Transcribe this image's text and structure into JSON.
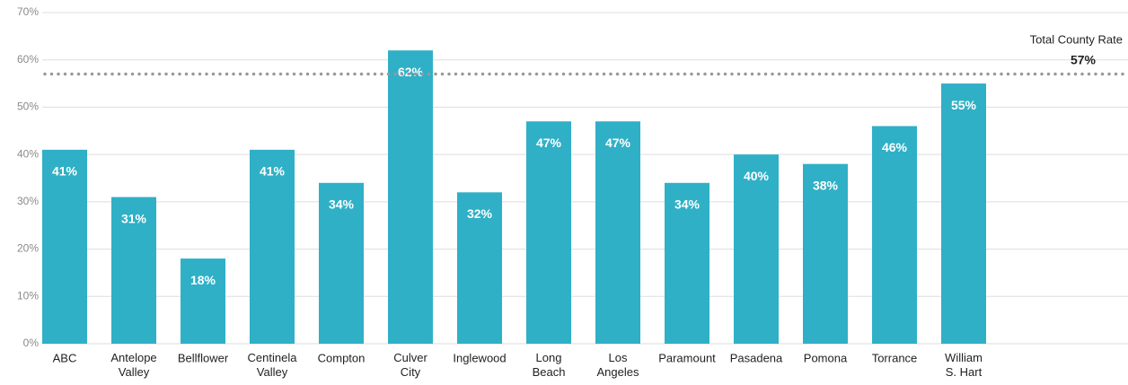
{
  "chart_data": {
    "type": "bar",
    "categories": [
      "ABC",
      "Antelope\nValley",
      "Bellflower",
      "Centinela\nValley",
      "Compton",
      "Culver\nCity",
      "Inglewood",
      "Long\nBeach",
      "Los\nAngeles",
      "Paramount",
      "Pasadena",
      "Pomona",
      "Torrance",
      "William\nS. Hart"
    ],
    "values": [
      41,
      31,
      18,
      41,
      34,
      62,
      32,
      47,
      47,
      34,
      40,
      38,
      46,
      55
    ],
    "value_labels": [
      "41%",
      "31%",
      "18%",
      "41%",
      "34%",
      "62%",
      "32%",
      "47%",
      "47%",
      "34%",
      "40%",
      "38%",
      "46%",
      "55%"
    ],
    "color": "#2fb0c6",
    "ylim": [
      0,
      70
    ],
    "yticks": [
      {
        "value": 0,
        "label": "0%"
      },
      {
        "value": 10,
        "label": "10%"
      },
      {
        "value": 20,
        "label": "20%"
      },
      {
        "value": 30,
        "label": "30%"
      },
      {
        "value": 40,
        "label": "40%"
      },
      {
        "value": 50,
        "label": "50%"
      },
      {
        "value": 60,
        "label": "60%"
      },
      {
        "value": 70,
        "label": "70%"
      }
    ],
    "grid": true,
    "reference_line": {
      "value": 57,
      "label": "Total County Rate",
      "value_label": "57%",
      "color": "#999999"
    }
  }
}
